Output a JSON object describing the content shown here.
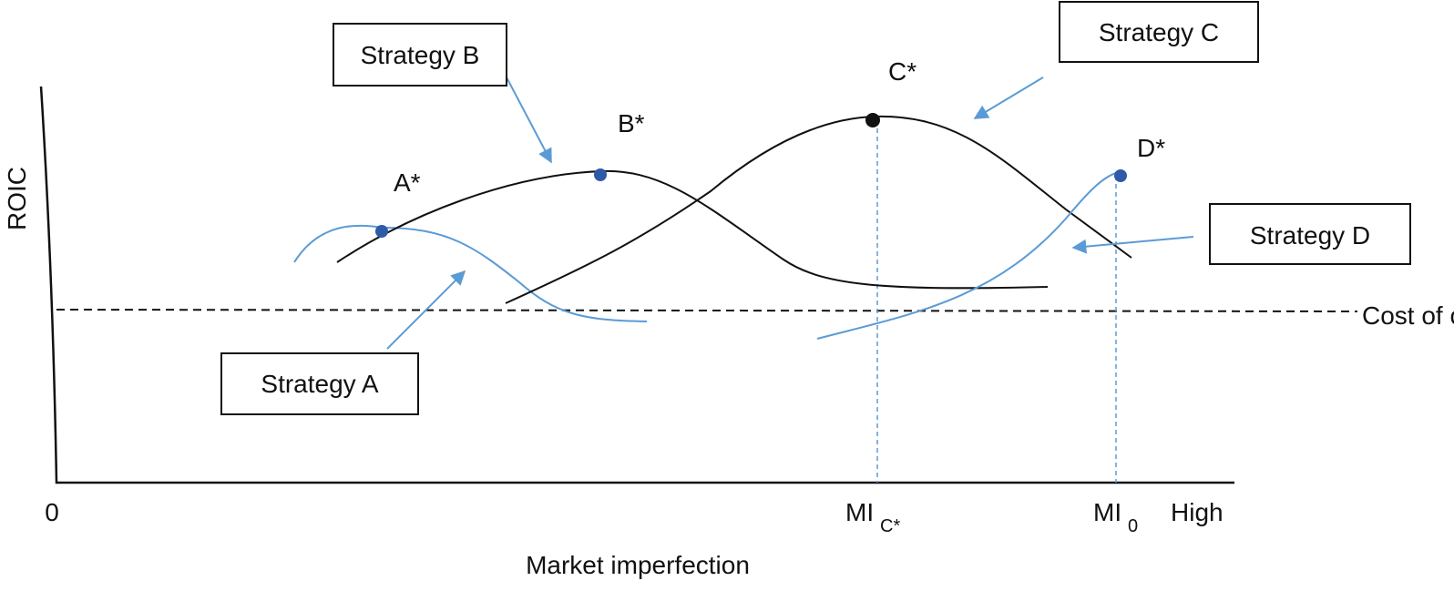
{
  "axes": {
    "y_label": "ROIC",
    "x_label": "Market imperfection",
    "origin": "0",
    "x_end": "High"
  },
  "cost_of_capital": "Cost of capital",
  "strategies": [
    {
      "label": "Strategy A"
    },
    {
      "label": "Strategy B"
    },
    {
      "label": "Strategy C"
    },
    {
      "label": "Strategy D"
    }
  ],
  "points": [
    {
      "label": "A*"
    },
    {
      "label": "B*"
    },
    {
      "label": "C*"
    },
    {
      "label": "D*"
    }
  ],
  "x_markers": [
    {
      "main": "MI",
      "sub": "C*"
    },
    {
      "main": "MI",
      "sub": "0"
    }
  ]
}
